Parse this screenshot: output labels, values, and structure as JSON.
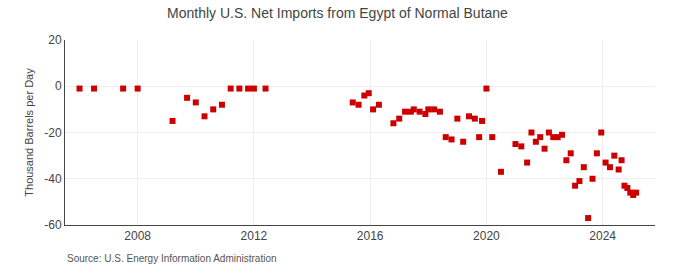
{
  "chart_data": {
    "type": "scatter",
    "title": "Monthly U.S. Net Imports from Egypt of Normal Butane",
    "ylabel": "Thousand Barrels per Day",
    "annotations": [
      "Source: U.S. Energy Information Administration"
    ],
    "color": "#cc0000",
    "marker": "square",
    "grid": true,
    "xlim": [
      2005.5,
      2025.8
    ],
    "xticks": [
      2008,
      2012,
      2016,
      2020,
      2024
    ],
    "ylim": [
      -60,
      20
    ],
    "yticks": [
      -60,
      -40,
      -20,
      0,
      20
    ],
    "x": [
      2006.0,
      2006.5,
      2007.5,
      2008.0,
      2009.2,
      2009.7,
      2010.0,
      2010.3,
      2010.6,
      2010.9,
      2011.2,
      2011.5,
      2011.8,
      2012.0,
      2012.4,
      2015.4,
      2015.6,
      2015.8,
      2015.95,
      2016.1,
      2016.3,
      2016.8,
      2017.0,
      2017.2,
      2017.4,
      2017.5,
      2017.7,
      2017.9,
      2018.0,
      2018.2,
      2018.4,
      2018.6,
      2018.8,
      2019.0,
      2019.2,
      2019.4,
      2019.6,
      2019.75,
      2019.85,
      2020.0,
      2020.2,
      2020.5,
      2021.0,
      2021.2,
      2021.4,
      2021.55,
      2021.7,
      2021.85,
      2022.0,
      2022.15,
      2022.3,
      2022.45,
      2022.6,
      2022.75,
      2022.9,
      2023.05,
      2023.2,
      2023.35,
      2023.5,
      2023.65,
      2023.8,
      2023.95,
      2024.1,
      2024.25,
      2024.4,
      2024.55,
      2024.65,
      2024.75,
      2024.85,
      2024.95,
      2025.05,
      2025.15
    ],
    "values": [
      -1,
      -1,
      -1,
      -1,
      -15,
      -5,
      -7,
      -13,
      -10,
      -8,
      -1,
      -1,
      -1,
      -1,
      -1,
      -7,
      -8,
      -4,
      -3,
      -10,
      -8,
      -16,
      -14,
      -11,
      -11,
      -10,
      -11,
      -12,
      -10,
      -10,
      -11,
      -22,
      -23,
      -14,
      -24,
      -13,
      -14,
      -22,
      -15,
      -1,
      -22,
      -37,
      -25,
      -26,
      -33,
      -20,
      -24,
      -22,
      -27,
      -20,
      -22,
      -22,
      -21,
      -32,
      -29,
      -43,
      -41,
      -35,
      -57,
      -40,
      -29,
      -20,
      -33,
      -35,
      -30,
      -36,
      -32,
      -43,
      -44,
      -46,
      -47,
      -46
    ]
  }
}
